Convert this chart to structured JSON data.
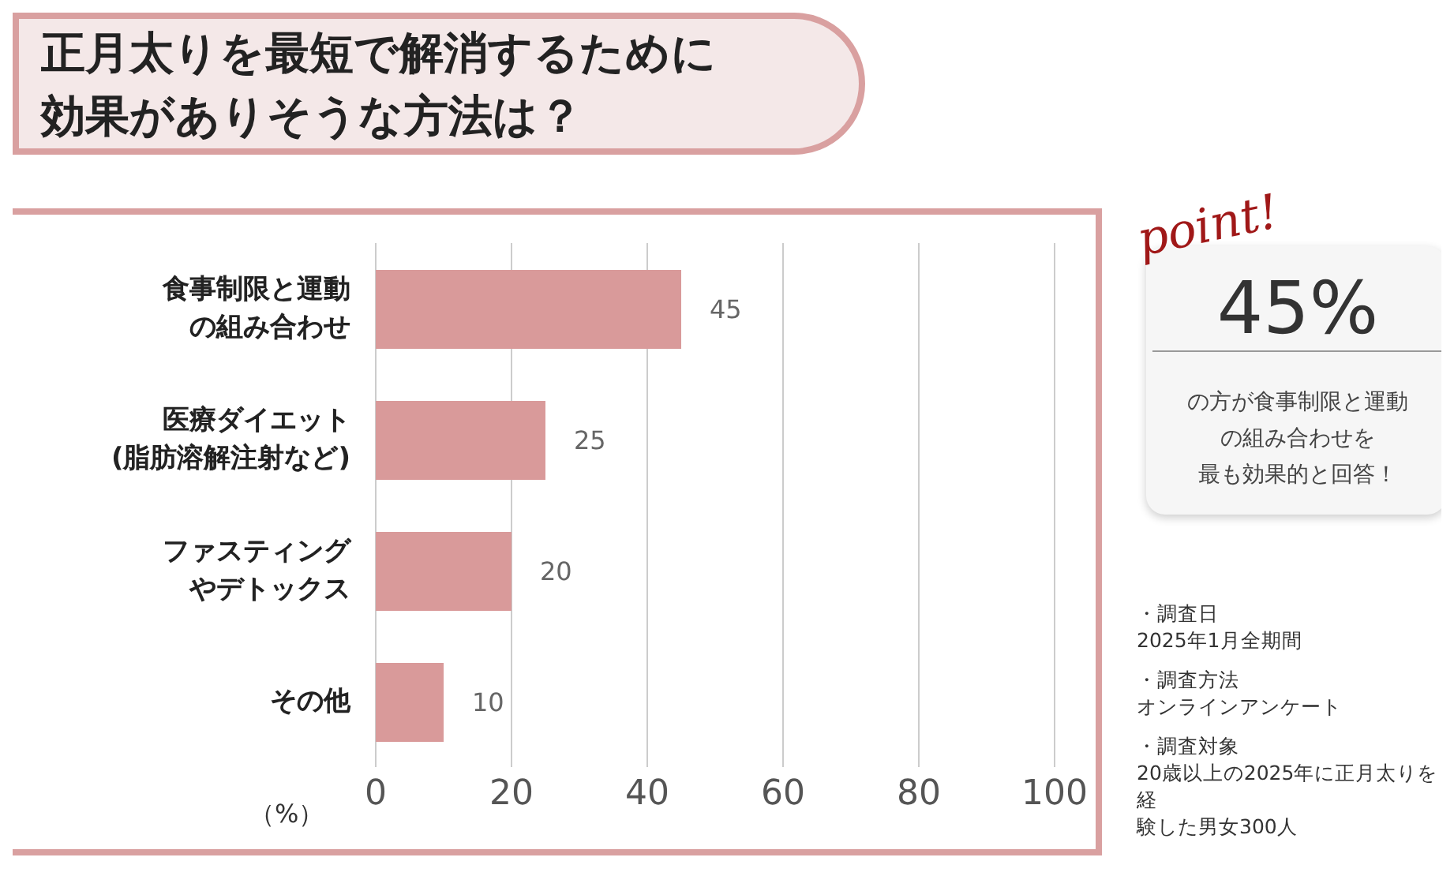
{
  "chart_data": {
    "type": "bar",
    "orientation": "horizontal",
    "title": "正月太りを最短で解消するために効果がありそうな方法は？",
    "xlabel": "（%）",
    "categories": [
      "食事制限と運動の組み合わせ",
      "医療ダイエット(脂肪溶解注射など)",
      "ファスティングやデトックス",
      "その他"
    ],
    "values": [
      45,
      25,
      20,
      10
    ],
    "color": "#d99a9a",
    "data_labels": true,
    "xlim": [
      0,
      100
    ],
    "xticks": [
      0,
      20,
      40,
      60,
      80,
      100
    ],
    "grid": "x",
    "legend": false,
    "annotations": [
      "point!",
      "45%",
      "の方が食事制限と運動の組み合わせを最も効果的と回答！",
      "・調査日2025年1月全期間",
      "・調査方法オンラインアンケート",
      "・調査対象20歳以上の2025年に正月太りを経験した男女300人"
    ]
  }
}
